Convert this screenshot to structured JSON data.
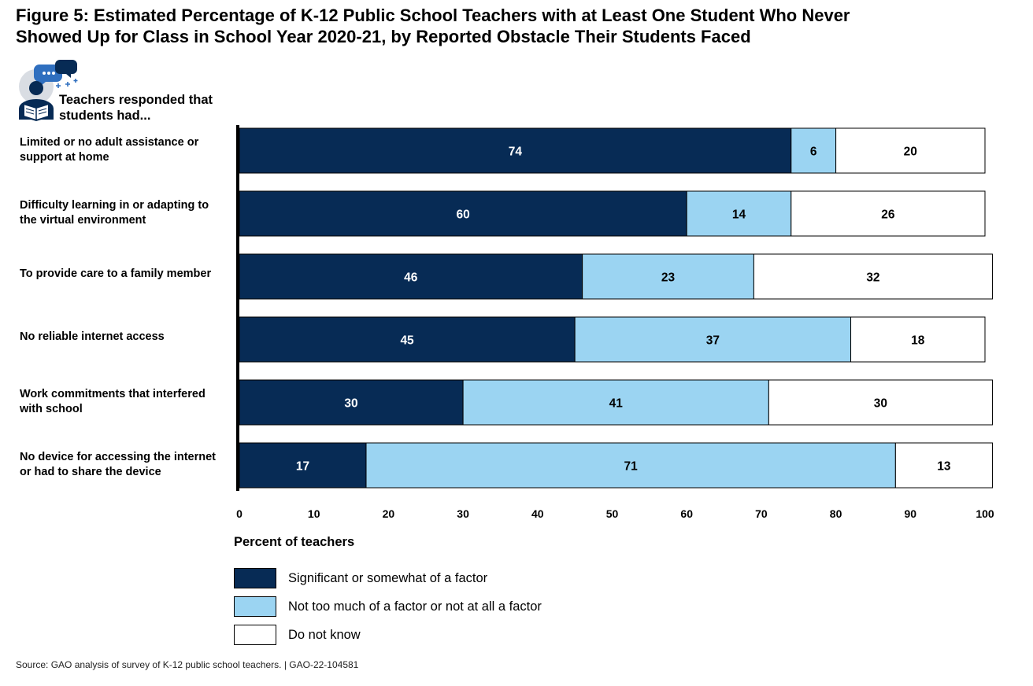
{
  "figure": {
    "title_line1": "Figure 5: Estimated Percentage of K-12 Public School Teachers with at Least One Student Who Never",
    "title_line2": "Showed Up for Class in School Year 2020-21, by Reported Obstacle Their Students Faced",
    "icon_name": "teacher-reading-icon",
    "icon_caption_line1": "Teachers responded that",
    "icon_caption_line2": "students had...",
    "source": "Source: GAO analysis of survey of K-12 public school teachers. | GAO-22-104581"
  },
  "chart_data": {
    "type": "bar",
    "orientation": "horizontal",
    "stacked": true,
    "title": "",
    "xlabel": "Percent of teachers",
    "ylabel": "",
    "xlim": [
      0,
      100
    ],
    "xticks": [
      0,
      10,
      20,
      30,
      40,
      50,
      60,
      70,
      80,
      90,
      100
    ],
    "grid": false,
    "legend_position": "bottom",
    "categories": [
      [
        "Limited or no adult assistance or",
        "support at home"
      ],
      [
        "Difficulty learning in or adapting to",
        "the virtual environment"
      ],
      [
        "To provide care to a family member"
      ],
      [
        "No reliable internet access"
      ],
      [
        "Work commitments that interfered",
        "with school"
      ],
      [
        "No device for accessing the internet",
        "or had to share the device"
      ]
    ],
    "series": [
      {
        "name": "Significant or somewhat of a factor",
        "color": "#072b55",
        "label_color": "#ffffff",
        "values": [
          74,
          60,
          46,
          45,
          30,
          17
        ]
      },
      {
        "name": "Not too much of a factor or not at all a factor",
        "color": "#9bd4f2",
        "label_color": "#000000",
        "values": [
          6,
          14,
          23,
          37,
          41,
          71
        ]
      },
      {
        "name": "Do not know",
        "color": "#ffffff",
        "label_color": "#000000",
        "values": [
          20,
          26,
          32,
          18,
          30,
          13
        ]
      }
    ]
  }
}
